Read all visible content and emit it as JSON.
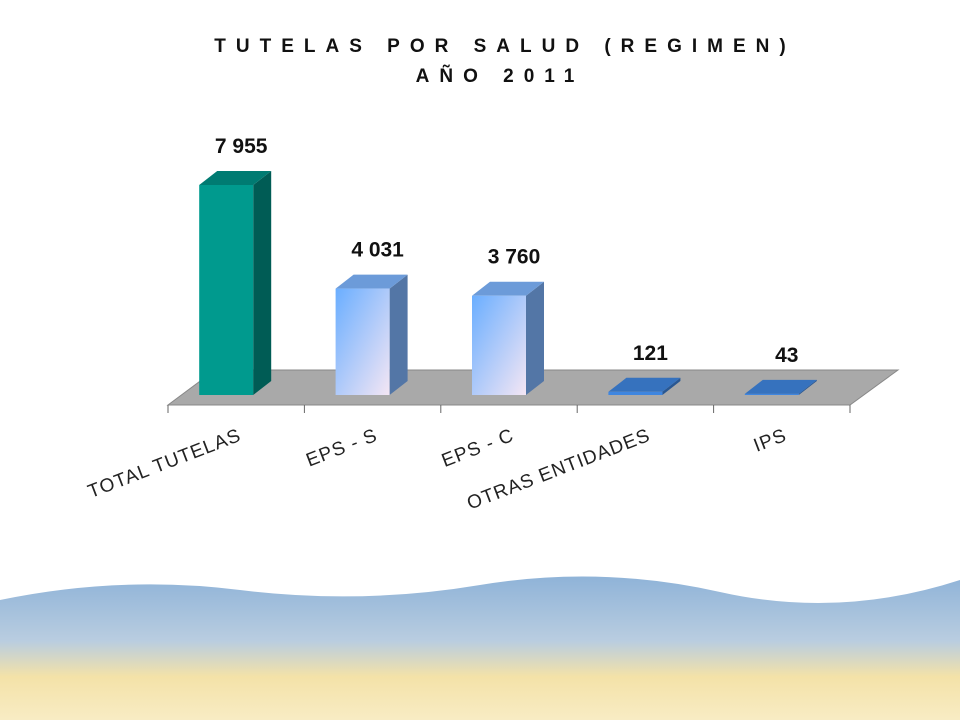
{
  "chart_data": {
    "type": "bar3d",
    "title": "TUTELAS POR SALUD (REGIMEN)",
    "subtitle": "AÑO 2011",
    "categories": [
      "TOTAL TUTELAS",
      "EPS - S",
      "EPS - C",
      "OTRAS ENTIDADES",
      "IPS"
    ],
    "values": [
      7955,
      4031,
      3760,
      121,
      43
    ],
    "value_labels": [
      "7 955",
      "4 031",
      "3 760",
      "121",
      "43"
    ],
    "colors": [
      "#009a8e",
      "#7fb6ff",
      "#7fb6ff",
      "#3f86e0",
      "#3f86e0"
    ]
  }
}
